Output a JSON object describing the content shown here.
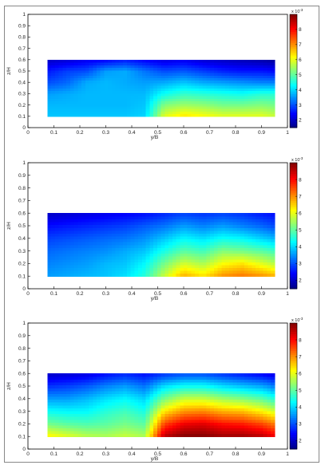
{
  "colors": {
    "frame": "#888888",
    "colormap": [
      "#00007f",
      "#0000ff",
      "#007fff",
      "#00ffff",
      "#7fff7f",
      "#ffff00",
      "#ff7f00",
      "#ff0000",
      "#7f0000"
    ]
  },
  "chart_data": [
    {
      "type": "heatmap",
      "subtype": "filled-contour",
      "xlabel": "y/B",
      "ylabel": "z/H",
      "xlim": [
        0,
        1
      ],
      "ylim": [
        0,
        1
      ],
      "xticks": [
        "0",
        "0.1",
        "0.2",
        "0.3",
        "0.4",
        "0.5",
        "0.6",
        "0.7",
        "0.8",
        "0.9",
        "1"
      ],
      "yticks": [
        "0",
        "0.1",
        "0.2",
        "0.3",
        "0.4",
        "0.5",
        "0.6",
        "0.7",
        "0.8",
        "0.9",
        "1"
      ],
      "colorbar": {
        "exponent_label": "x 10",
        "exponent_power": "-3",
        "ticks": [
          "2",
          "3",
          "4",
          "5",
          "6",
          "7",
          "8"
        ],
        "range": [
          1.5,
          9
        ]
      },
      "grid_x": [
        0.075,
        0.15,
        0.225,
        0.3,
        0.375,
        0.45,
        0.525,
        0.6,
        0.675,
        0.75,
        0.825,
        0.9,
        0.95
      ],
      "grid_y": [
        0.1,
        0.2,
        0.3,
        0.4,
        0.5,
        0.6
      ],
      "z": [
        [
          3.9,
          3.9,
          3.9,
          3.9,
          3.9,
          4.0,
          6.0,
          6.4,
          6.2,
          6.0,
          6.0,
          6.0,
          5.8
        ],
        [
          3.8,
          3.8,
          3.8,
          3.8,
          3.8,
          3.9,
          5.3,
          5.5,
          5.4,
          5.2,
          5.2,
          5.3,
          5.2
        ],
        [
          3.6,
          3.7,
          3.8,
          3.8,
          3.8,
          3.8,
          4.4,
          4.7,
          4.6,
          4.5,
          4.4,
          4.6,
          4.6
        ],
        [
          3.0,
          3.2,
          3.7,
          3.8,
          3.7,
          3.6,
          3.7,
          3.9,
          3.7,
          3.6,
          3.5,
          3.4,
          3.4
        ],
        [
          2.6,
          2.9,
          3.0,
          3.6,
          3.7,
          3.3,
          3.0,
          3.1,
          2.9,
          2.7,
          2.6,
          2.6,
          2.5
        ],
        [
          2.0,
          2.1,
          2.3,
          2.4,
          2.6,
          2.4,
          2.2,
          2.3,
          2.1,
          2.0,
          1.9,
          1.8,
          1.7
        ]
      ]
    },
    {
      "type": "heatmap",
      "subtype": "filled-contour",
      "xlabel": "y/B",
      "ylabel": "z/H",
      "xlim": [
        0,
        1
      ],
      "ylim": [
        0,
        1
      ],
      "xticks": [
        "0",
        "0.1",
        "0.2",
        "0.3",
        "0.4",
        "0.5",
        "0.6",
        "0.7",
        "0.8",
        "0.9",
        "1"
      ],
      "yticks": [
        "0",
        "0.1",
        "0.2",
        "0.3",
        "0.4",
        "0.5",
        "0.6",
        "0.7",
        "0.8",
        "0.9",
        "1"
      ],
      "colorbar": {
        "exponent_label": "x 10",
        "exponent_power": "-3",
        "ticks": [
          "2",
          "3",
          "4",
          "5",
          "6",
          "7",
          "8"
        ],
        "range": [
          1.5,
          9
        ]
      },
      "grid_x": [
        0.075,
        0.15,
        0.225,
        0.3,
        0.375,
        0.45,
        0.525,
        0.6,
        0.675,
        0.75,
        0.825,
        0.9,
        0.95
      ],
      "grid_y": [
        0.1,
        0.2,
        0.3,
        0.4,
        0.5,
        0.6
      ],
      "z": [
        [
          3.6,
          3.7,
          3.8,
          3.9,
          4.1,
          4.6,
          5.8,
          6.8,
          6.4,
          7.0,
          7.2,
          7.0,
          6.8
        ],
        [
          3.4,
          3.5,
          3.6,
          3.8,
          3.9,
          4.3,
          5.2,
          5.9,
          5.6,
          6.2,
          6.4,
          6.0,
          5.7
        ],
        [
          3.2,
          3.3,
          3.4,
          3.5,
          3.7,
          3.9,
          4.5,
          5.0,
          4.8,
          5.3,
          5.2,
          5.0,
          4.8
        ],
        [
          2.9,
          3.0,
          3.1,
          3.2,
          3.3,
          3.5,
          3.9,
          4.3,
          4.1,
          4.4,
          4.3,
          4.0,
          3.8
        ],
        [
          2.5,
          2.6,
          2.7,
          2.8,
          2.9,
          3.1,
          3.3,
          3.6,
          3.4,
          3.6,
          3.4,
          3.2,
          3.0
        ],
        [
          2.0,
          2.1,
          2.2,
          2.3,
          2.4,
          2.5,
          2.7,
          2.9,
          2.8,
          2.9,
          2.8,
          2.6,
          2.5
        ]
      ]
    },
    {
      "type": "heatmap",
      "subtype": "filled-contour",
      "xlabel": "y/B",
      "ylabel": "z/H",
      "xlim": [
        0,
        1
      ],
      "ylim": [
        0,
        1
      ],
      "xticks": [
        "0",
        "0.1",
        "0.2",
        "0.3",
        "0.4",
        "0.5",
        "0.6",
        "0.7",
        "0.8",
        "0.9",
        "1"
      ],
      "yticks": [
        "0",
        "0.1",
        "0.2",
        "0.3",
        "0.4",
        "0.5",
        "0.6",
        "0.7",
        "0.8",
        "0.9",
        "1"
      ],
      "colorbar": {
        "exponent_label": "x 10",
        "exponent_power": "-3",
        "ticks": [
          "2",
          "3",
          "4",
          "5",
          "6",
          "7",
          "8"
        ],
        "range": [
          1.5,
          9
        ]
      },
      "grid_x": [
        0.075,
        0.15,
        0.225,
        0.3,
        0.375,
        0.45,
        0.525,
        0.6,
        0.675,
        0.75,
        0.825,
        0.9,
        0.95
      ],
      "grid_y": [
        0.1,
        0.2,
        0.3,
        0.4,
        0.5,
        0.6
      ],
      "z": [
        [
          6.3,
          6.0,
          5.7,
          5.6,
          5.8,
          5.6,
          8.6,
          9.0,
          9.0,
          8.8,
          8.8,
          8.6,
          8.2
        ],
        [
          5.2,
          5.0,
          4.9,
          5.0,
          5.2,
          5.0,
          7.6,
          8.2,
          8.3,
          8.0,
          7.9,
          7.6,
          7.2
        ],
        [
          4.4,
          4.3,
          4.3,
          4.6,
          4.8,
          4.5,
          6.4,
          7.0,
          7.1,
          6.8,
          6.7,
          6.3,
          5.9
        ],
        [
          3.6,
          3.6,
          3.8,
          4.1,
          4.3,
          4.0,
          5.2,
          5.8,
          5.8,
          5.5,
          5.3,
          5.0,
          4.6
        ],
        [
          2.8,
          2.9,
          3.1,
          3.4,
          3.6,
          3.3,
          4.1,
          4.4,
          4.4,
          4.1,
          3.9,
          3.7,
          3.4
        ],
        [
          2.0,
          2.1,
          2.2,
          2.5,
          2.7,
          2.5,
          2.8,
          3.0,
          3.0,
          2.8,
          2.6,
          2.4,
          2.2
        ]
      ]
    }
  ]
}
